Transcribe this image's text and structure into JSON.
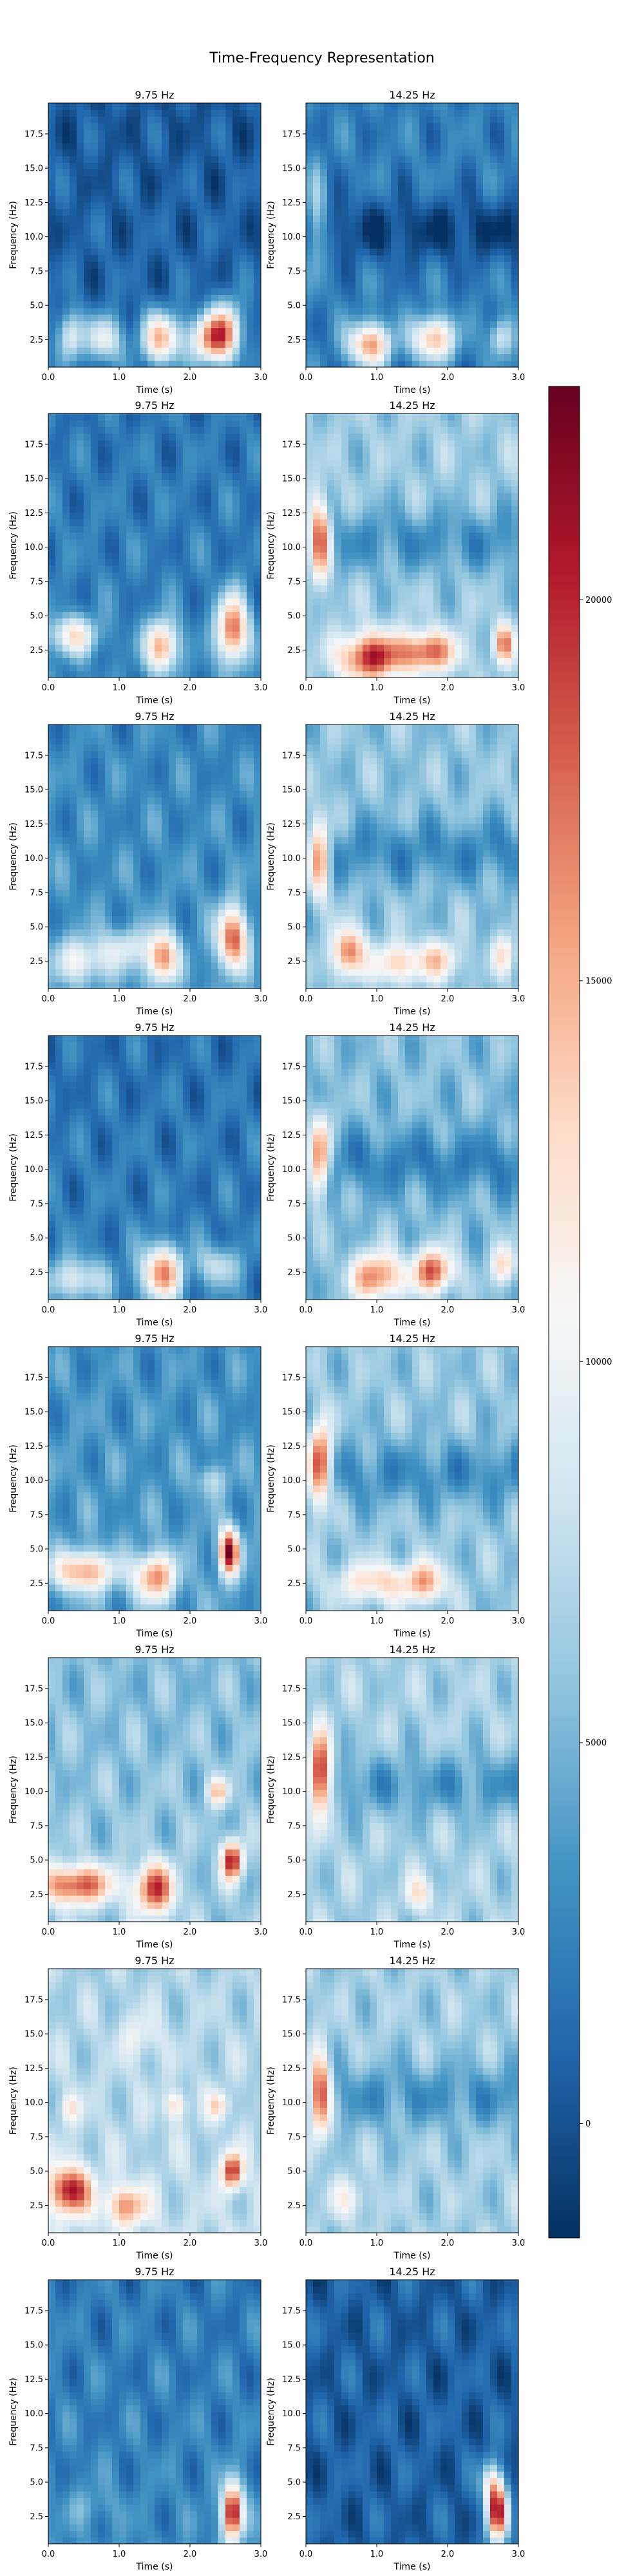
{
  "chart_data": {
    "type": "heatmap",
    "title": "Time-Frequency Representation",
    "rows": 8,
    "columns": 2,
    "panels": [
      {
        "title": "9.75 Hz",
        "col": 0,
        "row": 0
      },
      {
        "title": "14.25 Hz",
        "col": 1,
        "row": 0
      },
      {
        "title": "9.75 Hz",
        "col": 0,
        "row": 1
      },
      {
        "title": "14.25 Hz",
        "col": 1,
        "row": 1
      },
      {
        "title": "9.75 Hz",
        "col": 0,
        "row": 2
      },
      {
        "title": "14.25 Hz",
        "col": 1,
        "row": 2
      },
      {
        "title": "9.75 Hz",
        "col": 0,
        "row": 3
      },
      {
        "title": "14.25 Hz",
        "col": 1,
        "row": 3
      },
      {
        "title": "9.75 Hz",
        "col": 0,
        "row": 4
      },
      {
        "title": "14.25 Hz",
        "col": 1,
        "row": 4
      },
      {
        "title": "9.75 Hz",
        "col": 0,
        "row": 5
      },
      {
        "title": "14.25 Hz",
        "col": 1,
        "row": 5
      },
      {
        "title": "9.75 Hz",
        "col": 0,
        "row": 6
      },
      {
        "title": "14.25 Hz",
        "col": 1,
        "row": 6
      },
      {
        "title": "9.75 Hz",
        "col": 0,
        "row": 7
      },
      {
        "title": "14.25 Hz",
        "col": 1,
        "row": 7
      }
    ],
    "xlabel": "Time (s)",
    "ylabel": "Frequency (Hz)",
    "xlim": [
      0,
      3
    ],
    "ylim": [
      0.5,
      19.75
    ],
    "x_ticks": [
      "0.0",
      "1.0",
      "2.0",
      "3.0"
    ],
    "y_ticks": [
      "2.5",
      "5.0",
      "7.5",
      "10.0",
      "12.5",
      "15.0",
      "17.5"
    ],
    "colormap": "RdBu_r",
    "colorbar": {
      "vmin": -1500,
      "vmax": 22800,
      "ticks": [
        "0",
        "5000",
        "10000",
        "15000",
        "20000"
      ],
      "colors": [
        "#053061",
        "#2166ac",
        "#4393c3",
        "#92c5de",
        "#d1e5f0",
        "#f7f7f7",
        "#fddbc7",
        "#f4a582",
        "#d6604d",
        "#b2182b",
        "#67001f"
      ]
    }
  }
}
